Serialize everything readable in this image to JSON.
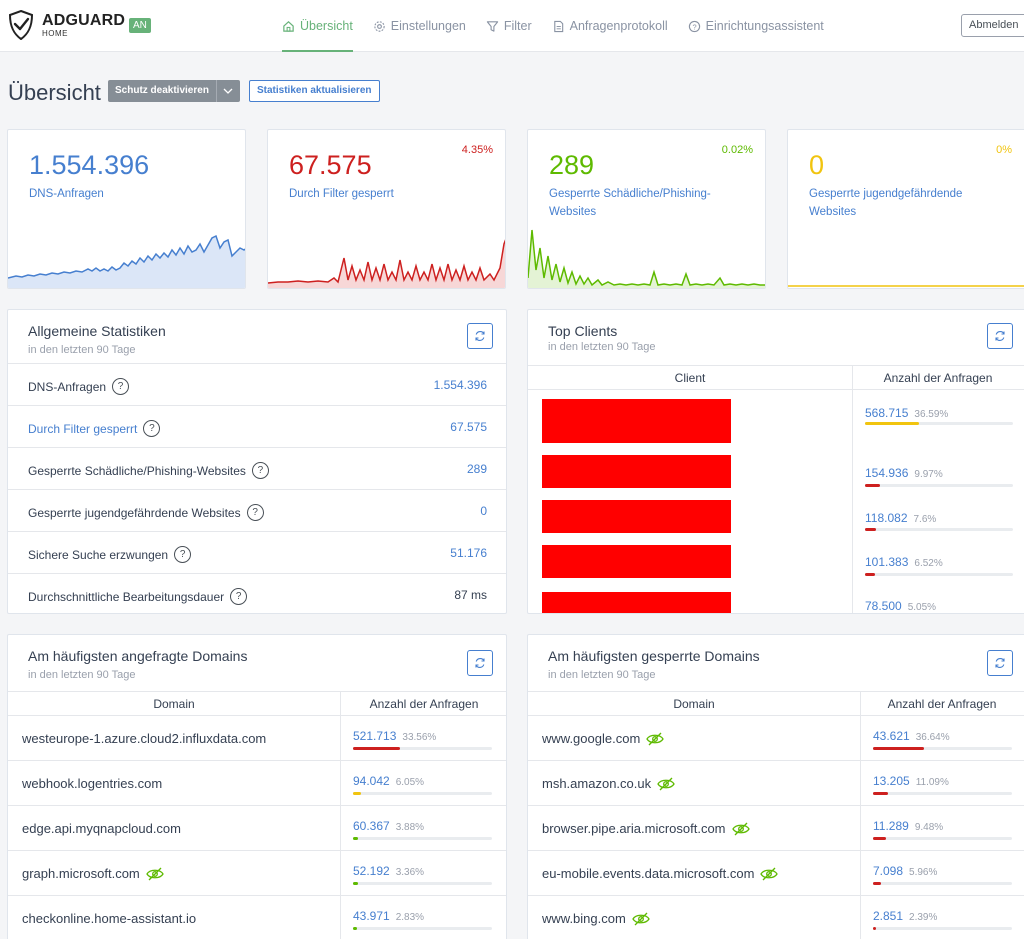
{
  "header": {
    "brand": "ADGUARD",
    "brand_sub": "HOME",
    "status_badge": "AN",
    "nav": [
      {
        "label": "Übersicht",
        "icon": "home-icon",
        "active": true
      },
      {
        "label": "Einstellungen",
        "icon": "gear-icon",
        "active": false
      },
      {
        "label": "Filter",
        "icon": "filter-icon",
        "active": false
      },
      {
        "label": "Anfragenprotokoll",
        "icon": "document-icon",
        "active": false
      },
      {
        "label": "Einrichtungsassistent",
        "icon": "help-circle-icon",
        "active": false
      }
    ],
    "logout_label": "Abmelden"
  },
  "page": {
    "title": "Übersicht",
    "protection_button": "Schutz deaktivieren",
    "refresh_button": "Statistiken aktualisieren"
  },
  "stats": [
    {
      "value": "1.554.396",
      "label": "DNS-Anfragen",
      "percent": "",
      "color": "#467fcf"
    },
    {
      "value": "67.575",
      "label": "Durch Filter gesperrt",
      "percent": "4.35%",
      "color": "#cd201f"
    },
    {
      "value": "289",
      "label": "Gesperrte Schädliche/Phishing-Websites",
      "percent": "0.02%",
      "color": "#5eba00"
    },
    {
      "value": "0",
      "label": "Gesperrte jugendgefährdende Websites",
      "percent": "0%",
      "color": "#f1c40f"
    }
  ],
  "general_stats": {
    "title": "Allgemeine Statistiken",
    "subtitle": "in den letzten 90 Tage",
    "rows": [
      {
        "label": "DNS-Anfragen",
        "value": "1.554.396"
      },
      {
        "label": "Durch Filter gesperrt",
        "value": "67.575"
      },
      {
        "label": "Gesperrte Schädliche/Phishing-Websites",
        "value": "289"
      },
      {
        "label": "Gesperrte jugendgefährdende Websites",
        "value": "0"
      },
      {
        "label": "Sichere Suche erzwungen",
        "value": "51.176"
      },
      {
        "label": "Durchschnittliche Bearbeitungsdauer",
        "value": "87 ms"
      }
    ]
  },
  "top_clients": {
    "title": "Top Clients",
    "subtitle": "in den letzten 90 Tage",
    "col_client": "Client",
    "col_count": "Anzahl der Anfragen",
    "rows": [
      {
        "count": "568.715",
        "percent": "36.59%",
        "fraction": 0.3659,
        "bar_color": "#f1c40f"
      },
      {
        "count": "154.936",
        "percent": "9.97%",
        "fraction": 0.0997,
        "bar_color": "#cd201f"
      },
      {
        "count": "118.082",
        "percent": "7.6%",
        "fraction": 0.076,
        "bar_color": "#cd201f"
      },
      {
        "count": "101.383",
        "percent": "6.52%",
        "fraction": 0.0652,
        "bar_color": "#cd201f"
      },
      {
        "count": "78.500",
        "percent": "5.05%",
        "fraction": 0.0505,
        "bar_color": "#cd201f"
      }
    ]
  },
  "top_domains": {
    "title": "Am häufigsten angefragte Domains",
    "subtitle": "in den letzten 90 Tage",
    "col_domain": "Domain",
    "col_count": "Anzahl der Anfragen",
    "rows": [
      {
        "domain": "westeurope-1.azure.cloud2.influxdata.com",
        "count": "521.713",
        "percent": "33.56%",
        "fraction": 0.3356,
        "bar_color": "#cd201f",
        "tracker": false
      },
      {
        "domain": "webhook.logentries.com",
        "count": "94.042",
        "percent": "6.05%",
        "fraction": 0.0605,
        "bar_color": "#f1c40f",
        "tracker": false
      },
      {
        "domain": "edge.api.myqnapcloud.com",
        "count": "60.367",
        "percent": "3.88%",
        "fraction": 0.0388,
        "bar_color": "#5eba00",
        "tracker": false
      },
      {
        "domain": "graph.microsoft.com",
        "count": "52.192",
        "percent": "3.36%",
        "fraction": 0.0336,
        "bar_color": "#5eba00",
        "tracker": true
      },
      {
        "domain": "checkonline.home-assistant.io",
        "count": "43.971",
        "percent": "2.83%",
        "fraction": 0.0283,
        "bar_color": "#5eba00",
        "tracker": false
      }
    ]
  },
  "blocked_domains": {
    "title": "Am häufigsten gesperrte Domains",
    "subtitle": "in den letzten 90 Tage",
    "col_domain": "Domain",
    "col_count": "Anzahl der Anfragen",
    "rows": [
      {
        "domain": "www.google.com",
        "count": "43.621",
        "percent": "36.64%",
        "fraction": 0.3664,
        "bar_color": "#cd201f",
        "tracker": true
      },
      {
        "domain": "msh.amazon.co.uk",
        "count": "13.205",
        "percent": "11.09%",
        "fraction": 0.1109,
        "bar_color": "#cd201f",
        "tracker": true
      },
      {
        "domain": "browser.pipe.aria.microsoft.com",
        "count": "11.289",
        "percent": "9.48%",
        "fraction": 0.0948,
        "bar_color": "#cd201f",
        "tracker": true
      },
      {
        "domain": "eu-mobile.events.data.microsoft.com",
        "count": "7.098",
        "percent": "5.96%",
        "fraction": 0.0596,
        "bar_color": "#cd201f",
        "tracker": true
      },
      {
        "domain": "www.bing.com",
        "count": "2.851",
        "percent": "2.39%",
        "fraction": 0.0239,
        "bar_color": "#cd201f",
        "tracker": true
      }
    ]
  }
}
